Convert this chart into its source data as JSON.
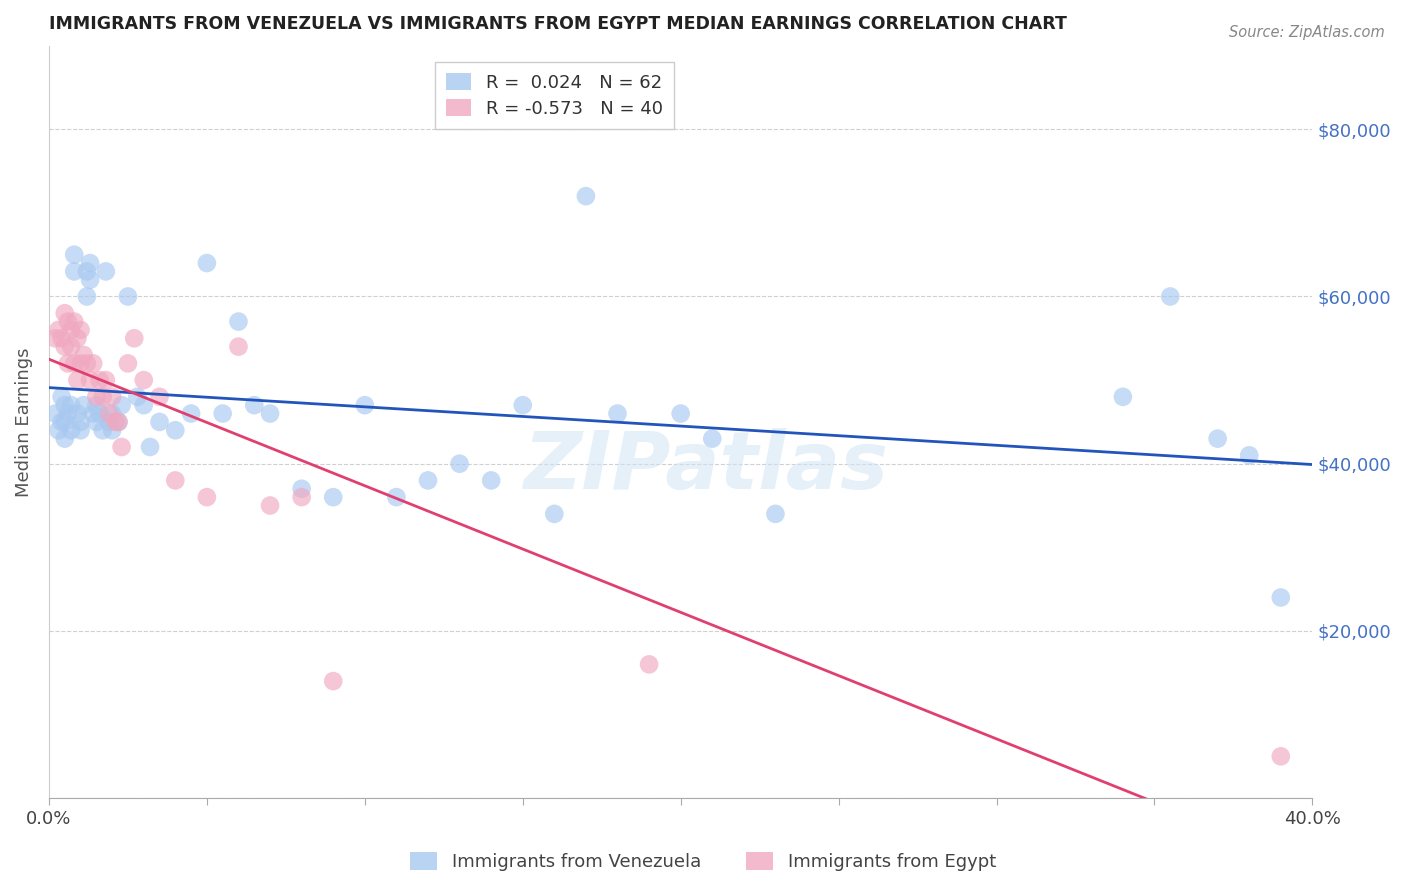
{
  "title": "IMMIGRANTS FROM VENEZUELA VS IMMIGRANTS FROM EGYPT MEDIAN EARNINGS CORRELATION CHART",
  "source": "Source: ZipAtlas.com",
  "ylabel": "Median Earnings",
  "xlim": [
    0.0,
    0.4
  ],
  "ylim": [
    0,
    90000
  ],
  "yticks": [
    0,
    20000,
    40000,
    60000,
    80000
  ],
  "xticks": [
    0.0,
    0.05,
    0.1,
    0.15,
    0.2,
    0.25,
    0.3,
    0.35,
    0.4
  ],
  "background_color": "#ffffff",
  "grid_color": "#d0d0d0",
  "watermark": "ZIPatlas",
  "color_venezuela": "#a8c8f0",
  "color_egypt": "#f0a8c0",
  "line_color_venezuela": "#2255bb",
  "line_color_egypt": "#e04070",
  "venezuela_x": [
    0.002,
    0.003,
    0.004,
    0.004,
    0.005,
    0.005,
    0.005,
    0.006,
    0.007,
    0.007,
    0.008,
    0.008,
    0.009,
    0.01,
    0.01,
    0.011,
    0.012,
    0.012,
    0.013,
    0.013,
    0.014,
    0.015,
    0.015,
    0.016,
    0.017,
    0.018,
    0.019,
    0.02,
    0.02,
    0.022,
    0.023,
    0.025,
    0.028,
    0.03,
    0.032,
    0.035,
    0.04,
    0.045,
    0.05,
    0.055,
    0.06,
    0.065,
    0.07,
    0.08,
    0.09,
    0.1,
    0.11,
    0.12,
    0.13,
    0.14,
    0.15,
    0.16,
    0.17,
    0.18,
    0.2,
    0.21,
    0.23,
    0.34,
    0.355,
    0.37,
    0.38,
    0.39
  ],
  "venezuela_y": [
    46000,
    44000,
    48000,
    45000,
    47000,
    43000,
    45000,
    46000,
    47000,
    44000,
    65000,
    63000,
    46000,
    45000,
    44000,
    47000,
    63000,
    60000,
    62000,
    64000,
    46000,
    45000,
    47000,
    46000,
    44000,
    63000,
    45000,
    46000,
    44000,
    45000,
    47000,
    60000,
    48000,
    47000,
    42000,
    45000,
    44000,
    46000,
    64000,
    46000,
    57000,
    47000,
    46000,
    37000,
    36000,
    47000,
    36000,
    38000,
    40000,
    38000,
    47000,
    34000,
    72000,
    46000,
    46000,
    43000,
    34000,
    48000,
    60000,
    43000,
    41000,
    24000
  ],
  "egypt_x": [
    0.002,
    0.003,
    0.004,
    0.005,
    0.005,
    0.006,
    0.006,
    0.007,
    0.007,
    0.008,
    0.008,
    0.009,
    0.009,
    0.01,
    0.01,
    0.011,
    0.012,
    0.013,
    0.014,
    0.015,
    0.016,
    0.017,
    0.018,
    0.019,
    0.02,
    0.021,
    0.022,
    0.023,
    0.025,
    0.027,
    0.03,
    0.035,
    0.04,
    0.05,
    0.06,
    0.07,
    0.08,
    0.09,
    0.19,
    0.39
  ],
  "egypt_y": [
    55000,
    56000,
    55000,
    58000,
    54000,
    57000,
    52000,
    56000,
    54000,
    57000,
    52000,
    55000,
    50000,
    56000,
    52000,
    53000,
    52000,
    50000,
    52000,
    48000,
    50000,
    48000,
    50000,
    46000,
    48000,
    45000,
    45000,
    42000,
    52000,
    55000,
    50000,
    48000,
    38000,
    36000,
    54000,
    35000,
    36000,
    14000,
    16000,
    5000
  ]
}
